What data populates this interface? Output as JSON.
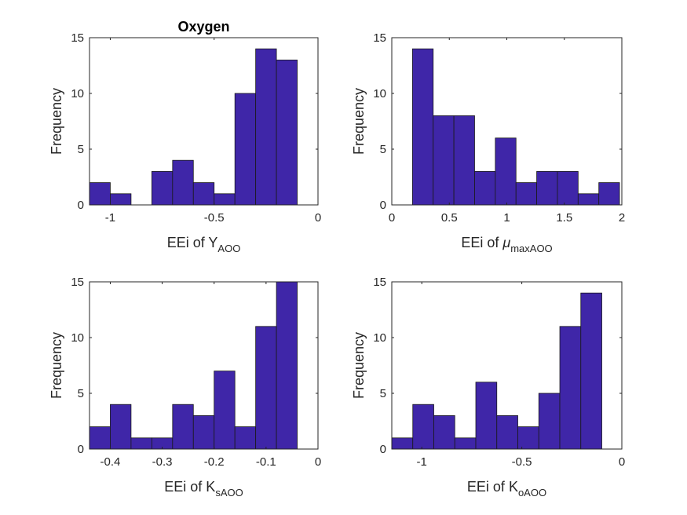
{
  "chart_data": [
    {
      "type": "bar",
      "title": "Oxygen",
      "xlabel": {
        "prefix": "EEi of ",
        "symbol": "Y",
        "sub": "AOO"
      },
      "ylabel": "Frequency",
      "xlim": [
        -1.1,
        0
      ],
      "ylim": [
        0,
        15
      ],
      "xticks": [
        -1,
        -0.5,
        0
      ],
      "yticks": [
        0,
        5,
        10,
        15
      ],
      "bin_edges": [
        -1.1,
        -1.0,
        -0.9,
        -0.8,
        -0.7,
        -0.6,
        -0.5,
        -0.4,
        -0.3,
        -0.2,
        -0.1
      ],
      "values": [
        2,
        1,
        0,
        3,
        4,
        2,
        1,
        10,
        14,
        13
      ]
    },
    {
      "type": "bar",
      "title": "",
      "xlabel": {
        "prefix": "EEi of ",
        "symbol": "μ",
        "sub": "maxAOO"
      },
      "ylabel": "Frequency",
      "xlim": [
        0,
        2
      ],
      "ylim": [
        0,
        15
      ],
      "xticks": [
        0,
        0.5,
        1,
        1.5,
        2
      ],
      "yticks": [
        0,
        5,
        10,
        15
      ],
      "bin_edges": [
        0.18,
        0.36,
        0.54,
        0.72,
        0.9,
        1.08,
        1.26,
        1.44,
        1.62,
        1.8,
        1.98
      ],
      "values": [
        14,
        8,
        8,
        3,
        6,
        2,
        3,
        3,
        1,
        2
      ]
    },
    {
      "type": "bar",
      "title": "",
      "xlabel": {
        "prefix": "EEi of ",
        "symbol": "K",
        "sub": "sAOO"
      },
      "ylabel": "Frequency",
      "xlim": [
        -0.44,
        0
      ],
      "ylim": [
        0,
        15
      ],
      "xticks": [
        -0.4,
        -0.3,
        -0.2,
        -0.1,
        0
      ],
      "yticks": [
        0,
        5,
        10,
        15
      ],
      "bin_edges": [
        -0.44,
        -0.4,
        -0.36,
        -0.32,
        -0.28,
        -0.24,
        -0.2,
        -0.16,
        -0.12,
        -0.08,
        -0.04
      ],
      "values": [
        2,
        4,
        1,
        1,
        4,
        3,
        7,
        2,
        11,
        15
      ]
    },
    {
      "type": "bar",
      "title": "",
      "xlabel": {
        "prefix": "EEi of ",
        "symbol": "K",
        "sub": "oAOO"
      },
      "ylabel": "Frequency",
      "xlim": [
        -1.15,
        0
      ],
      "ylim": [
        0,
        15
      ],
      "xticks": [
        -1,
        -0.5,
        0
      ],
      "yticks": [
        0,
        5,
        10,
        15
      ],
      "bin_edges": [
        -1.15,
        -1.045,
        -0.94,
        -0.835,
        -0.73,
        -0.625,
        -0.52,
        -0.415,
        -0.31,
        -0.205,
        -0.1
      ],
      "values": [
        1,
        4,
        3,
        1,
        6,
        3,
        2,
        5,
        11,
        14
      ]
    }
  ],
  "colors": {
    "bar_fill": "#3f26a8",
    "bar_edge": "#1a1a1a",
    "axis": "#262626",
    "text": "#262626"
  }
}
